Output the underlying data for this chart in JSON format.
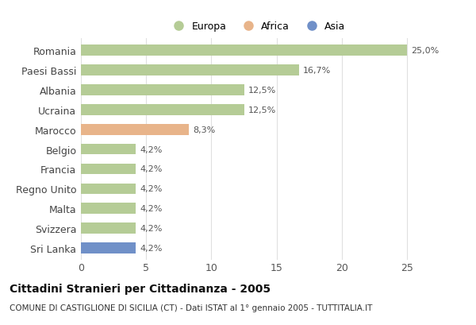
{
  "countries": [
    "Romania",
    "Paesi Bassi",
    "Albania",
    "Ucraina",
    "Marocco",
    "Belgio",
    "Francia",
    "Regno Unito",
    "Malta",
    "Svizzera",
    "Sri Lanka"
  ],
  "values": [
    25.0,
    16.7,
    12.5,
    12.5,
    8.3,
    4.2,
    4.2,
    4.2,
    4.2,
    4.2,
    4.2
  ],
  "labels": [
    "25,0%",
    "16,7%",
    "12,5%",
    "12,5%",
    "8,3%",
    "4,2%",
    "4,2%",
    "4,2%",
    "4,2%",
    "4,2%",
    "4,2%"
  ],
  "continents": [
    "Europa",
    "Europa",
    "Europa",
    "Europa",
    "Africa",
    "Europa",
    "Europa",
    "Europa",
    "Europa",
    "Europa",
    "Asia"
  ],
  "colors": {
    "Europa": "#b5cc96",
    "Africa": "#e8b48a",
    "Asia": "#7090c8"
  },
  "xlim": [
    0,
    27
  ],
  "xticks": [
    0,
    5,
    10,
    15,
    20,
    25
  ],
  "title": "Cittadini Stranieri per Cittadinanza - 2005",
  "subtitle": "COMUNE DI CASTIGLIONE DI SICILIA (CT) - Dati ISTAT al 1° gennaio 2005 - TUTTITALIA.IT",
  "bg_color": "#ffffff",
  "grid_color": "#e0e0e0",
  "bar_height": 0.55,
  "label_fontsize": 8,
  "ytick_fontsize": 9,
  "xtick_fontsize": 9,
  "title_fontsize": 10,
  "subtitle_fontsize": 7.5
}
